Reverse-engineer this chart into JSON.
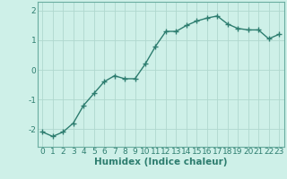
{
  "x": [
    0,
    1,
    2,
    3,
    4,
    5,
    6,
    7,
    8,
    9,
    10,
    11,
    12,
    13,
    14,
    15,
    16,
    17,
    18,
    19,
    20,
    21,
    22,
    23
  ],
  "y": [
    -2.1,
    -2.25,
    -2.1,
    -1.8,
    -1.2,
    -0.8,
    -0.4,
    -0.2,
    -0.3,
    -0.3,
    0.2,
    0.8,
    1.3,
    1.3,
    1.5,
    1.65,
    1.75,
    1.82,
    1.55,
    1.4,
    1.35,
    1.35,
    1.05,
    1.2
  ],
  "line_color": "#2d7d6f",
  "marker": "+",
  "marker_color": "#2d7d6f",
  "bg_color": "#cef0e8",
  "grid_color": "#b0d8ce",
  "xlabel": "Humidex (Indice chaleur)",
  "ylim": [
    -2.6,
    2.3
  ],
  "yticks": [
    -2,
    -1,
    0,
    1,
    2
  ],
  "xticks": [
    0,
    1,
    2,
    3,
    4,
    5,
    6,
    7,
    8,
    9,
    10,
    11,
    12,
    13,
    14,
    15,
    16,
    17,
    18,
    19,
    20,
    21,
    22,
    23
  ],
  "line_width": 1.0,
  "marker_size": 4,
  "xlabel_fontsize": 7.5,
  "tick_fontsize": 6.5,
  "tick_color": "#2d7d6f",
  "axis_color": "#2d7d6f",
  "spine_color": "#6aada0"
}
